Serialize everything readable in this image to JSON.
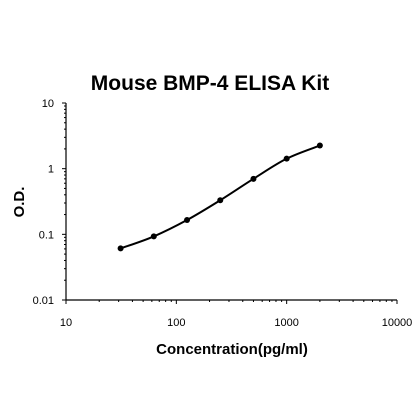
{
  "chart_data": {
    "type": "scatter",
    "title": "Mouse BMP-4 ELISA Kit",
    "xlabel": "Concentration(pg/ml)",
    "ylabel": "O.D.",
    "x_scale": "log",
    "y_scale": "log",
    "xlim": [
      10,
      10000
    ],
    "ylim": [
      0.01,
      10
    ],
    "x_ticks": [
      "10",
      "100",
      "1000",
      "10000"
    ],
    "y_ticks": [
      "0.01",
      "0.1",
      "1",
      "10"
    ],
    "grid": false,
    "legend": "none",
    "series": [
      {
        "x": [
          31.25,
          62.5,
          125,
          250,
          500,
          1000,
          2000
        ],
        "y": [
          0.061,
          0.093,
          0.165,
          0.33,
          0.7,
          1.42,
          2.25
        ],
        "fit_curve": true
      }
    ]
  }
}
